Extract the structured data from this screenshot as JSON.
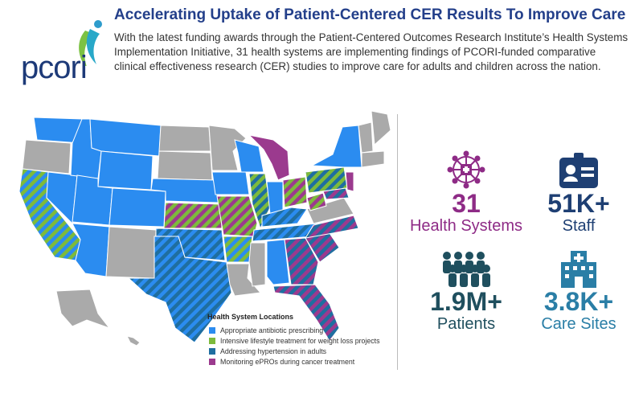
{
  "header": {
    "logo_text": "pcori",
    "title": "Accelerating Uptake of Patient-Centered CER Results To Improve Care",
    "intro": "With the latest funding awards through the Patient-Centered Outcomes Research Institute’s Health Systems Implementation Initiative, 31 health systems are implementing findings of PCORI-funded comparative clinical effectiveness research (CER) studies to improve care for adults and children across the nation."
  },
  "legend": {
    "title": "Health System Locations",
    "items": [
      {
        "label": "Appropriate antibiotic prescribing",
        "color": "#2b8cf0"
      },
      {
        "label": "Intensive lifestyle treatment for weight loss projects",
        "color": "#7dba3c"
      },
      {
        "label": "Addressing hypertension in adults",
        "color": "#1f6ea0"
      },
      {
        "label": "Monitoring ePROs during cancer treatment",
        "color": "#9b3a8e"
      }
    ]
  },
  "stats": [
    {
      "number": "31",
      "label": "Health Systems",
      "color": "#8e2b86",
      "icon": "network-icon"
    },
    {
      "number": "51K+",
      "label": "Staff",
      "color": "#1e3f73",
      "icon": "id-badge-icon"
    },
    {
      "number": "1.9M+",
      "label": "Patients",
      "color": "#1f4f5e",
      "icon": "people-group-icon"
    },
    {
      "number": "3.8K+",
      "label": "Care Sites",
      "color": "#2a7ea6",
      "icon": "hospital-building-icon"
    }
  ]
}
